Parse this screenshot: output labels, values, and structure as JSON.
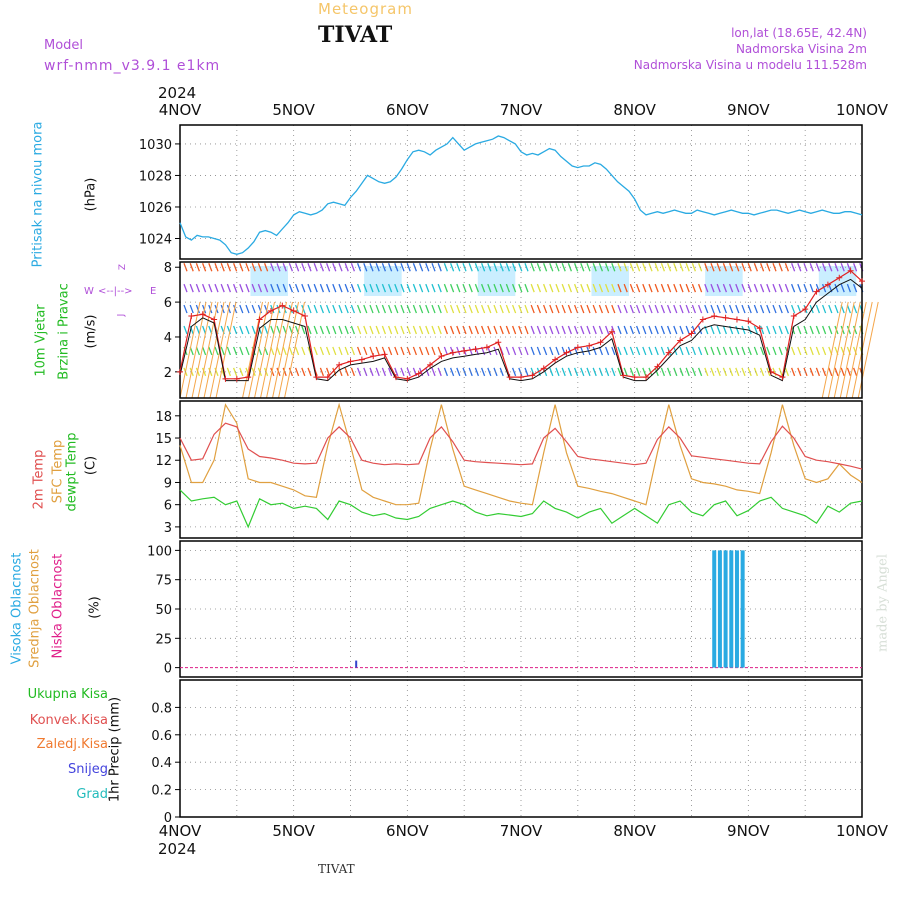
{
  "header": {
    "meteogram": "Meteogram",
    "city": "TIVAT",
    "model_label": "Model",
    "model_name": "wrf-nmm_v3.9.1  e1km",
    "lonlat": "lon,lat (18.65E, 42.4N)",
    "elevation": "Nadmorska Visina 2m",
    "model_elevation": "Nadmorska Visina u modelu 111.528m",
    "year_top": "2024",
    "year_bottom": "2024",
    "footer_city": "TIVAT",
    "signature": "made by Angel"
  },
  "colors": {
    "pressure": "#2aaae2",
    "wind_label": "#22bb22",
    "temp2m": "#e05050",
    "sfc": "#e0a040",
    "dewpt": "#33cc33",
    "high_cloud": "#2aaae2",
    "mid_cloud": "#e0a040",
    "low_cloud": "#e0208a",
    "gust": "#e02020",
    "purple": "#b04fd8"
  },
  "chart_data": [
    {
      "type": "line",
      "name": "pressure",
      "ylabel": [
        "Pritisak na nivou mora",
        "(hPa)"
      ],
      "x_ticks": [
        "4NOV",
        "5NOV",
        "6NOV",
        "7NOV",
        "8NOV",
        "9NOV",
        "10NOV"
      ],
      "y_ticks": [
        1024,
        1026,
        1028,
        1030
      ],
      "ylim": [
        1022.7,
        1031.2
      ],
      "grid": true,
      "x": [
        0,
        0.05,
        0.1,
        0.15,
        0.2,
        0.25,
        0.3,
        0.35,
        0.4,
        0.45,
        0.5,
        0.55,
        0.6,
        0.65,
        0.7,
        0.75,
        0.8,
        0.85,
        0.9,
        0.95,
        1.0,
        1.05,
        1.1,
        1.15,
        1.2,
        1.25,
        1.3,
        1.35,
        1.4,
        1.45,
        1.5,
        1.55,
        1.6,
        1.65,
        1.7,
        1.75,
        1.8,
        1.85,
        1.9,
        1.95,
        2.0,
        2.05,
        2.1,
        2.15,
        2.2,
        2.25,
        2.3,
        2.35,
        2.4,
        2.45,
        2.5,
        2.55,
        2.6,
        2.65,
        2.7,
        2.75,
        2.8,
        2.85,
        2.9,
        2.95,
        3.0,
        3.05,
        3.1,
        3.15,
        3.2,
        3.25,
        3.3,
        3.35,
        3.4,
        3.45,
        3.5,
        3.55,
        3.6,
        3.65,
        3.7,
        3.75,
        3.8,
        3.85,
        3.9,
        3.95,
        4.0,
        4.05,
        4.1,
        4.15,
        4.2,
        4.25,
        4.3,
        4.35,
        4.4,
        4.45,
        4.5,
        4.55,
        4.6,
        4.65,
        4.7,
        4.75,
        4.8,
        4.85,
        4.9,
        4.95,
        5.0,
        5.05,
        5.1,
        5.15,
        5.2,
        5.25,
        5.3,
        5.35,
        5.4,
        5.45,
        5.5,
        5.55,
        5.6,
        5.65,
        5.7,
        5.75,
        5.8,
        5.85,
        5.9,
        5.95,
        6.0
      ],
      "series": [
        {
          "values": [
            1025.0,
            1024.1,
            1023.9,
            1024.2,
            1024.1,
            1024.1,
            1024.0,
            1023.9,
            1023.6,
            1023.1,
            1023.0,
            1023.1,
            1023.4,
            1023.8,
            1024.4,
            1024.5,
            1024.4,
            1024.2,
            1024.6,
            1025.0,
            1025.5,
            1025.7,
            1025.6,
            1025.5,
            1025.6,
            1025.8,
            1026.2,
            1026.3,
            1026.2,
            1026.1,
            1026.6,
            1027.0,
            1027.5,
            1028.0,
            1027.8,
            1027.6,
            1027.5,
            1027.6,
            1027.9,
            1028.4,
            1029.0,
            1029.5,
            1029.6,
            1029.5,
            1029.3,
            1029.6,
            1029.8,
            1030.0,
            1030.4,
            1030.0,
            1029.6,
            1029.8,
            1030.0,
            1030.1,
            1030.2,
            1030.3,
            1030.5,
            1030.4,
            1030.2,
            1030.0,
            1029.5,
            1029.3,
            1029.4,
            1029.3,
            1029.5,
            1029.7,
            1029.6,
            1029.2,
            1028.9,
            1028.6,
            1028.5,
            1028.6,
            1028.6,
            1028.8,
            1028.7,
            1028.4,
            1028.0,
            1027.6,
            1027.3,
            1027.0,
            1026.5,
            1025.8,
            1025.5,
            1025.6,
            1025.7,
            1025.6,
            1025.7,
            1025.8,
            1025.7,
            1025.6,
            1025.6,
            1025.8,
            1025.7,
            1025.6,
            1025.5,
            1025.6,
            1025.7,
            1025.8,
            1025.7,
            1025.6,
            1025.6,
            1025.5,
            1025.6,
            1025.7,
            1025.8,
            1025.8,
            1025.7,
            1025.6,
            1025.7,
            1025.8,
            1025.7,
            1025.6,
            1025.7,
            1025.8,
            1025.7,
            1025.6,
            1025.6,
            1025.7,
            1025.7,
            1025.6,
            1025.5
          ]
        }
      ]
    },
    {
      "type": "line",
      "name": "wind",
      "ylabel": [
        "10m Vjetar",
        "Brzina i Pravac",
        "(m/s)"
      ],
      "compass": [
        "W",
        "<--|-->",
        "E",
        "^",
        "|",
        "v",
        "Z",
        "J"
      ],
      "y_ticks": [
        2,
        4,
        6,
        8
      ],
      "ylim": [
        0.5,
        8.3
      ],
      "grid": true,
      "x": [
        0,
        0.1,
        0.2,
        0.3,
        0.4,
        0.5,
        0.6,
        0.7,
        0.8,
        0.9,
        1.0,
        1.1,
        1.2,
        1.3,
        1.4,
        1.5,
        1.6,
        1.7,
        1.8,
        1.9,
        2.0,
        2.1,
        2.2,
        2.3,
        2.4,
        2.5,
        2.6,
        2.7,
        2.8,
        2.9,
        3.0,
        3.1,
        3.2,
        3.3,
        3.4,
        3.5,
        3.6,
        3.7,
        3.8,
        3.9,
        4.0,
        4.1,
        4.2,
        4.3,
        4.4,
        4.5,
        4.6,
        4.7,
        4.8,
        4.9,
        5.0,
        5.1,
        5.2,
        5.3,
        5.4,
        5.5,
        5.6,
        5.7,
        5.8,
        5.9,
        6.0
      ],
      "series": [
        {
          "name": "speed",
          "values": [
            1.8,
            4.6,
            5.1,
            4.8,
            1.5,
            1.5,
            1.5,
            4.5,
            5.0,
            5.0,
            4.8,
            4.6,
            1.6,
            1.5,
            2.1,
            2.4,
            2.5,
            2.6,
            2.8,
            1.6,
            1.5,
            1.7,
            2.2,
            2.6,
            2.8,
            2.9,
            3.0,
            3.1,
            3.3,
            1.6,
            1.5,
            1.6,
            2.0,
            2.5,
            2.9,
            3.1,
            3.2,
            3.4,
            3.9,
            1.7,
            1.5,
            1.5,
            2.1,
            2.8,
            3.5,
            3.8,
            4.5,
            4.7,
            4.6,
            4.5,
            4.4,
            4.1,
            1.8,
            1.5,
            4.6,
            5.0,
            6.0,
            6.5,
            7.0,
            7.3,
            6.8
          ]
        },
        {
          "name": "gust",
          "values": [
            2.0,
            5.2,
            5.3,
            5.0,
            1.6,
            1.6,
            1.7,
            5.0,
            5.5,
            5.8,
            5.5,
            5.2,
            1.7,
            1.7,
            2.4,
            2.6,
            2.7,
            2.9,
            3.0,
            1.7,
            1.6,
            1.9,
            2.4,
            2.9,
            3.1,
            3.2,
            3.3,
            3.4,
            3.7,
            1.7,
            1.7,
            1.8,
            2.2,
            2.7,
            3.1,
            3.4,
            3.5,
            3.7,
            4.3,
            1.8,
            1.7,
            1.7,
            2.3,
            3.1,
            3.8,
            4.2,
            5.0,
            5.2,
            5.1,
            5.0,
            4.9,
            4.5,
            2.0,
            1.7,
            5.2,
            5.6,
            6.6,
            7.0,
            7.4,
            7.8,
            7.2
          ]
        }
      ]
    },
    {
      "type": "line",
      "name": "temperature",
      "ylabel": [
        "2m Temp",
        "SFC Temp",
        "dewpt Temp",
        "(C)"
      ],
      "y_ticks": [
        3,
        6,
        9,
        12,
        15,
        18
      ],
      "ylim": [
        1.5,
        20.0
      ],
      "grid": true,
      "x": [
        0,
        0.1,
        0.2,
        0.3,
        0.4,
        0.5,
        0.6,
        0.7,
        0.8,
        0.9,
        1.0,
        1.1,
        1.2,
        1.3,
        1.4,
        1.5,
        1.6,
        1.7,
        1.8,
        1.9,
        2.0,
        2.1,
        2.2,
        2.3,
        2.4,
        2.5,
        2.6,
        2.7,
        2.8,
        2.9,
        3.0,
        3.1,
        3.2,
        3.3,
        3.4,
        3.5,
        3.6,
        3.7,
        3.8,
        3.9,
        4.0,
        4.1,
        4.2,
        4.3,
        4.4,
        4.5,
        4.6,
        4.7,
        4.8,
        4.9,
        5.0,
        5.1,
        5.2,
        5.3,
        5.4,
        5.5,
        5.6,
        5.7,
        5.8,
        5.9,
        6.0
      ],
      "series": [
        {
          "name": "2m",
          "values": [
            15.0,
            12.0,
            12.2,
            15.5,
            17.0,
            16.5,
            13.5,
            12.5,
            12.3,
            12.0,
            11.6,
            11.5,
            11.6,
            15.0,
            16.5,
            15.0,
            12.0,
            11.6,
            11.4,
            11.5,
            11.4,
            11.5,
            15.0,
            16.5,
            14.5,
            12.0,
            11.8,
            11.7,
            11.6,
            11.5,
            11.4,
            11.5,
            15.0,
            16.3,
            14.5,
            12.5,
            12.2,
            12.0,
            11.8,
            11.6,
            11.4,
            11.6,
            14.8,
            16.5,
            15.0,
            12.6,
            12.4,
            12.2,
            12.0,
            11.8,
            11.6,
            11.5,
            14.5,
            16.6,
            15.0,
            12.5,
            12.0,
            11.8,
            11.5,
            11.2,
            10.8
          ]
        },
        {
          "name": "sfc",
          "values": [
            14.0,
            9.0,
            9.0,
            12.0,
            19.5,
            17.0,
            9.5,
            9.0,
            9.0,
            8.5,
            8.0,
            7.2,
            7.0,
            14.0,
            19.5,
            14.0,
            8.0,
            7.0,
            6.5,
            6.0,
            6.0,
            6.2,
            13.5,
            19.5,
            13.5,
            8.5,
            8.0,
            7.5,
            7.0,
            6.5,
            6.2,
            6.0,
            13.0,
            19.5,
            13.0,
            8.5,
            8.2,
            7.8,
            7.5,
            7.0,
            6.5,
            6.0,
            13.0,
            19.5,
            14.0,
            9.5,
            9.0,
            8.8,
            8.5,
            8.0,
            7.8,
            7.5,
            13.0,
            19.5,
            14.0,
            9.5,
            9.0,
            9.5,
            11.5,
            10.0,
            9.0
          ]
        },
        {
          "name": "dewpt",
          "values": [
            8.0,
            6.5,
            6.8,
            7.0,
            6.0,
            6.5,
            3.0,
            6.8,
            6.0,
            6.2,
            5.5,
            5.8,
            5.5,
            4.0,
            6.5,
            6.0,
            5.0,
            4.5,
            4.8,
            4.2,
            4.0,
            4.4,
            5.5,
            6.0,
            6.5,
            6.0,
            5.0,
            4.5,
            4.8,
            4.6,
            4.4,
            4.8,
            6.5,
            5.5,
            5.0,
            4.2,
            5.0,
            5.5,
            3.5,
            4.5,
            5.5,
            4.5,
            3.5,
            6.0,
            6.5,
            5.0,
            4.5,
            6.0,
            6.5,
            4.5,
            5.2,
            6.5,
            7.0,
            5.5,
            5.0,
            4.5,
            3.5,
            5.8,
            5.0,
            6.2,
            6.5
          ]
        }
      ]
    },
    {
      "type": "bar",
      "name": "clouds",
      "ylabel": [
        "Visoka Oblacnost",
        "Srednja Oblacnost",
        "Niska Oblacnost",
        "(%)"
      ],
      "y_ticks": [
        0,
        25,
        50,
        75,
        100
      ],
      "ylim": [
        -8,
        108
      ],
      "grid": true,
      "high_cloud_x": [
        4.7,
        4.75,
        4.8,
        4.85,
        4.9,
        4.95
      ],
      "high_cloud_values": [
        100,
        100,
        100,
        100,
        100,
        100
      ],
      "low_cloud_x": [
        1.55
      ],
      "low_cloud_values": [
        6
      ]
    },
    {
      "type": "line",
      "name": "precip",
      "ylabel": [
        "Ukupna Kisa",
        "Konvek.Kisa",
        "Zaledj.Kisa",
        "Snijeg",
        "Grad",
        "1hr Precip (mm)"
      ],
      "y_ticks": [
        "0",
        "0.2",
        "0.4",
        "0.6",
        "0.8"
      ],
      "ylim": [
        0,
        1.0
      ],
      "grid": true,
      "values": []
    }
  ]
}
